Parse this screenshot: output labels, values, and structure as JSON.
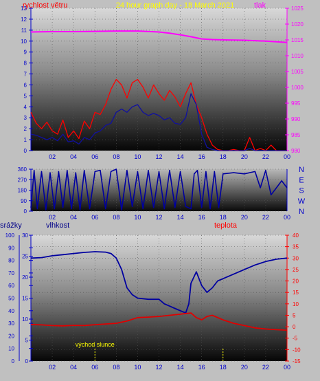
{
  "header": {
    "title": "24 hour graph day - 18 March 2021",
    "wind_label": "rychlost větru",
    "pressure_label": "tlak"
  },
  "colors": {
    "wind": "#ff0000",
    "gust_wind": "#1010a0",
    "pressure": "#ff00ff",
    "direction": "#0000a0",
    "humidity": "#0000a0",
    "temperature": "#e00000",
    "axis_left": "#0000cc",
    "axis_right_top": "#ff00ff",
    "axis_right_bottom": "#ff0000",
    "title": "#ffff00",
    "event": "#ffff00"
  },
  "chart_data": [
    {
      "type": "line",
      "name": "wind-and-pressure",
      "x_ticks": [
        "02",
        "04",
        "06",
        "08",
        "10",
        "12",
        "14",
        "16",
        "18",
        "20",
        "22",
        "00"
      ],
      "xlim": [
        0,
        24
      ],
      "y_left": {
        "label": "rychlost větru",
        "ticks": [
          "0",
          "1",
          "2",
          "3",
          "4",
          "5",
          "6",
          "7",
          "8",
          "9",
          "10",
          "11",
          "12",
          "13"
        ],
        "range": [
          0,
          13
        ]
      },
      "y_right": {
        "label": "tlak",
        "ticks": [
          "980",
          "985",
          "990",
          "995",
          "1000",
          "1005",
          "1010",
          "1015",
          "1020",
          "1025"
        ],
        "range": [
          980,
          1025
        ]
      },
      "series": [
        {
          "key": "pressure",
          "axis": "right",
          "x": [
            0,
            2,
            4,
            6,
            8,
            10,
            12,
            13,
            14,
            15,
            16,
            17,
            18,
            20,
            22,
            24
          ],
          "y": [
            1017.5,
            1017.6,
            1017.6,
            1017.7,
            1017.8,
            1017.8,
            1017.5,
            1017.1,
            1016.6,
            1016,
            1015.3,
            1015.1,
            1015,
            1014.9,
            1014.6,
            1014.2
          ]
        },
        {
          "key": "wind",
          "axis": "left",
          "x": [
            0,
            0.5,
            1,
            1.5,
            2,
            2.5,
            3,
            3.5,
            4,
            4.5,
            5,
            5.5,
            6,
            6.5,
            7,
            7.5,
            8,
            8.5,
            9,
            9.5,
            10,
            10.5,
            11,
            11.5,
            12,
            12.5,
            13,
            13.5,
            14,
            14.5,
            15,
            15.5,
            16,
            16.5,
            17,
            17.5,
            18,
            18.5,
            19,
            19.5,
            20,
            20.5,
            21,
            21.5,
            22,
            22.5,
            23,
            23.5,
            24
          ],
          "y": [
            3.5,
            2.5,
            2,
            2.6,
            1.8,
            1.5,
            2.8,
            1.2,
            1.8,
            1.1,
            2.7,
            2,
            3.5,
            3.3,
            4.2,
            5.6,
            6.5,
            6,
            4.8,
            6.2,
            6.5,
            5.8,
            4.8,
            6,
            5.2,
            4.6,
            5.5,
            4.9,
            4,
            5.2,
            6.2,
            4.2,
            3,
            1.5,
            0.5,
            0.1,
            0,
            0,
            0.1,
            0,
            0,
            1.2,
            0,
            0.2,
            0,
            0.5,
            0,
            0,
            0
          ]
        },
        {
          "key": "gust_wind",
          "axis": "left",
          "x": [
            0,
            0.5,
            1,
            1.5,
            2,
            2.5,
            3,
            3.5,
            4,
            4.5,
            5,
            5.5,
            6,
            6.5,
            7,
            7.5,
            8,
            8.5,
            9,
            9.5,
            10,
            10.5,
            11,
            11.5,
            12,
            12.5,
            13,
            13.5,
            14,
            14.5,
            15,
            15.5,
            16,
            16.5,
            17,
            17.5,
            18,
            18.5,
            19,
            19.5,
            20,
            20.5,
            21,
            21.5,
            22,
            22.5,
            23,
            23.5,
            24
          ],
          "y": [
            1.5,
            1.4,
            1.2,
            1,
            1.2,
            0.9,
            1.5,
            0.8,
            0.9,
            0.6,
            1.2,
            1,
            1.6,
            1.8,
            2.3,
            2.5,
            3.5,
            3.8,
            3.5,
            4,
            4.2,
            3.5,
            3.2,
            3.4,
            3.2,
            2.8,
            3,
            2.5,
            2.4,
            3,
            5.2,
            4.2,
            1.5,
            0.3,
            0.1,
            0,
            0,
            0,
            0,
            0,
            0,
            0.2,
            0,
            0,
            0,
            0,
            0,
            0,
            0
          ]
        }
      ]
    },
    {
      "type": "line",
      "name": "wind-direction",
      "x_ticks": [
        "02",
        "04",
        "06",
        "08",
        "10",
        "12",
        "14",
        "16",
        "18",
        "20",
        "22",
        "00"
      ],
      "xlim": [
        0,
        24
      ],
      "y_left": {
        "ticks": [
          "0",
          "90",
          "180",
          "270",
          "360"
        ],
        "range": [
          0,
          360
        ]
      },
      "y_right": {
        "ticks": [
          "N",
          "W",
          "S",
          "E",
          "N"
        ]
      },
      "series": [
        {
          "key": "direction",
          "x": [
            0,
            0.3,
            0.6,
            1,
            1.4,
            1.8,
            2.2,
            2.6,
            3,
            3.4,
            3.8,
            4.2,
            4.6,
            5,
            5.5,
            6,
            6.5,
            7,
            7.5,
            8,
            8.5,
            9,
            9.5,
            10,
            10.5,
            11,
            11.5,
            12,
            12.5,
            13,
            13.5,
            14,
            14.5,
            15,
            15.3,
            15.6,
            16,
            16.4,
            16.8,
            17.2,
            17.6,
            18,
            19,
            20,
            21,
            21.5,
            22,
            22.5,
            23,
            23.5,
            24
          ],
          "y": [
            30,
            350,
            20,
            340,
            10,
            330,
            20,
            340,
            30,
            350,
            20,
            330,
            10,
            350,
            20,
            340,
            350,
            20,
            340,
            360,
            10,
            350,
            40,
            340,
            20,
            350,
            30,
            340,
            20,
            350,
            30,
            340,
            40,
            20,
            320,
            350,
            30,
            340,
            20,
            340,
            30,
            320,
            330,
            320,
            340,
            200,
            350,
            140,
            200,
            260,
            200
          ]
        }
      ]
    },
    {
      "type": "line",
      "name": "humidity-temperature",
      "x_ticks": [
        "02",
        "04",
        "06",
        "08",
        "10",
        "12",
        "14",
        "16",
        "18",
        "20",
        "22",
        "00"
      ],
      "xlim": [
        0,
        24
      ],
      "y_precip": {
        "label": "srážky",
        "ticks": [
          "0",
          "10",
          "20",
          "30",
          "40",
          "50",
          "60",
          "70",
          "80",
          "90",
          "100"
        ],
        "range": [
          0,
          100
        ]
      },
      "y_left": {
        "label": "vlhkost",
        "ticks": [
          "0",
          "5",
          "10",
          "15",
          "20",
          "25",
          "30"
        ],
        "range": [
          0,
          30
        ]
      },
      "y_right": {
        "label": "teplota",
        "ticks": [
          "-15",
          "-10",
          "-5",
          "0",
          "5",
          "10",
          "15",
          "20",
          "25",
          "30",
          "35",
          "40"
        ],
        "range": [
          -15,
          40
        ]
      },
      "events": [
        {
          "label": "východ slunce",
          "x": 6.0
        },
        {
          "label": "",
          "x": 18.0
        }
      ],
      "series": [
        {
          "key": "humidity",
          "axis": "right",
          "x": [
            0,
            1,
            2,
            3,
            4,
            5,
            6,
            7,
            7.5,
            8,
            8.5,
            9,
            9.5,
            10,
            11,
            12,
            12.5,
            13,
            13.5,
            14,
            14.5,
            14.8,
            15,
            15.5,
            16,
            16.5,
            17,
            17.5,
            18,
            19,
            20,
            21,
            22,
            23,
            24
          ],
          "y": [
            30,
            30.2,
            31,
            31.5,
            32,
            32.5,
            32.8,
            32.6,
            32,
            30,
            25,
            17,
            14,
            12.5,
            12,
            12,
            10,
            9,
            8,
            7,
            6,
            10,
            19,
            24,
            18,
            15,
            17,
            20,
            21,
            23,
            25,
            27,
            28.5,
            29.5,
            30
          ]
        },
        {
          "key": "temperature",
          "axis": "right",
          "x": [
            0,
            1,
            2,
            3,
            4,
            5,
            6,
            7,
            8,
            9,
            10,
            11,
            12,
            13,
            14,
            15,
            15.5,
            16,
            16.5,
            17,
            18,
            19,
            20,
            21,
            22,
            23,
            24
          ],
          "y": [
            1,
            0.8,
            0.5,
            0.4,
            0.6,
            0.5,
            0.9,
            1.2,
            1.5,
            2.5,
            4,
            4.2,
            4.5,
            5,
            5.5,
            6,
            4,
            3,
            4.5,
            5,
            3,
            1.5,
            0.5,
            -0.5,
            -1,
            -1.3,
            -1.5
          ]
        }
      ]
    }
  ]
}
